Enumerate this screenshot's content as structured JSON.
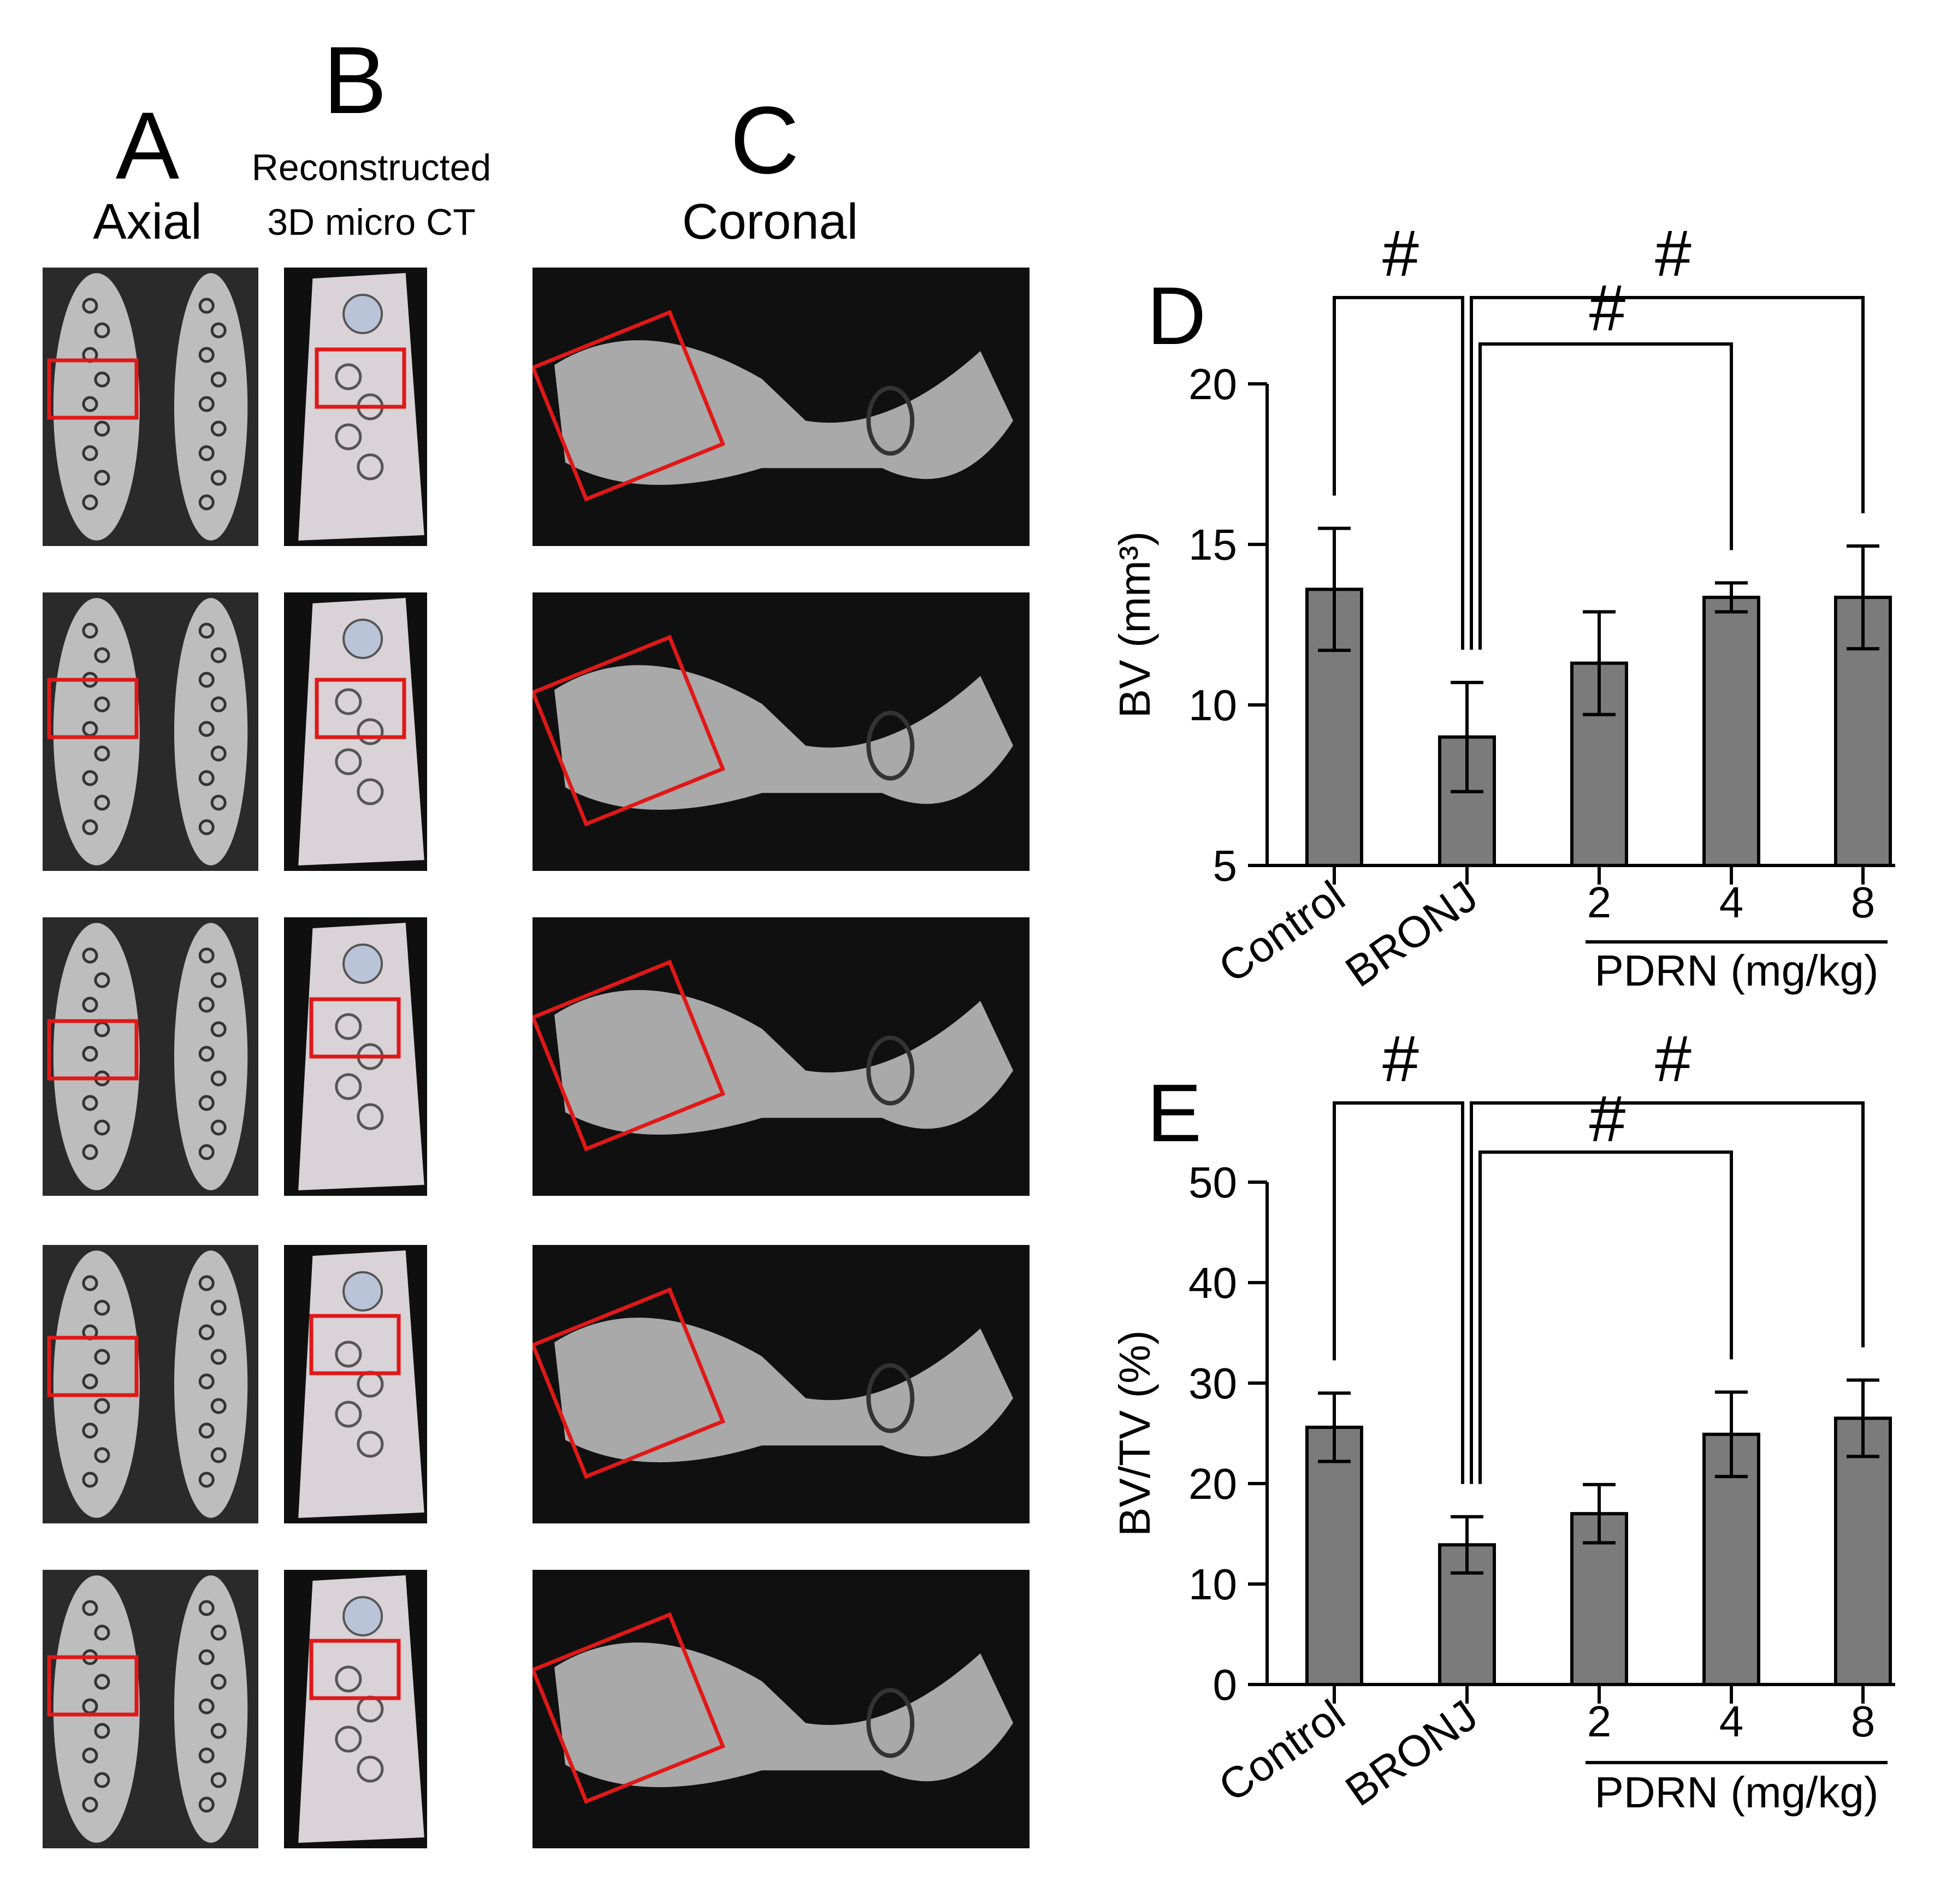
{
  "columns": {
    "a": {
      "letter": "A",
      "title": "Axial"
    },
    "b": {
      "letter": "B",
      "title_lines": [
        "Reconstructed",
        "3D micro CT"
      ]
    },
    "c": {
      "letter": "C",
      "title": "Coronal"
    }
  },
  "images": {
    "rows": 5,
    "description_icons": [
      "axial-ct-slice",
      "3d-micro-ct-render",
      "coronal-ct-slice"
    ],
    "roi_color": "#e01818"
  },
  "chart_data": [
    {
      "panel": "D",
      "type": "bar",
      "categories": [
        "Control",
        "BRONJ",
        "2",
        "4",
        "8"
      ],
      "group_label": "PDRN (mg/kg)",
      "ylabel": "BV (mm³)",
      "ylim": [
        5,
        20
      ],
      "yticks": [
        5,
        10,
        15,
        20
      ],
      "values": [
        13.6,
        9.0,
        11.3,
        13.35,
        13.35
      ],
      "errors": [
        1.9,
        1.7,
        1.6,
        0.45,
        1.6
      ],
      "significance": [
        {
          "from": "BRONJ",
          "to": "Control",
          "mark": "#"
        },
        {
          "from": "BRONJ",
          "to": "4",
          "mark": "#"
        },
        {
          "from": "BRONJ",
          "to": "8",
          "mark": "#"
        }
      ],
      "bar_color": "#7b7b7b",
      "grid": false
    },
    {
      "panel": "E",
      "type": "bar",
      "categories": [
        "Control",
        "BRONJ",
        "2",
        "4",
        "8"
      ],
      "group_label": "PDRN (mg/kg)",
      "ylabel": "BV/TV (%)",
      "ylim": [
        0,
        50
      ],
      "yticks": [
        0,
        10,
        20,
        30,
        40,
        50
      ],
      "values": [
        25.6,
        13.9,
        17.0,
        24.9,
        26.5
      ],
      "errors": [
        3.4,
        2.8,
        2.9,
        4.2,
        3.8
      ],
      "significance": [
        {
          "from": "BRONJ",
          "to": "Control",
          "mark": "#"
        },
        {
          "from": "BRONJ",
          "to": "4",
          "mark": "#"
        },
        {
          "from": "BRONJ",
          "to": "8",
          "mark": "#"
        }
      ],
      "bar_color": "#7b7b7b",
      "grid": false
    }
  ]
}
